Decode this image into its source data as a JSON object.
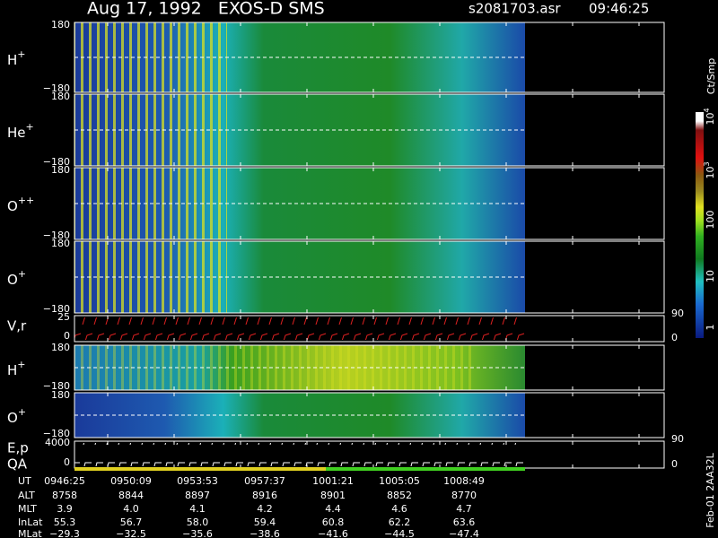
{
  "header": {
    "title": "Aug 17, 1992   EXOS-D SMS",
    "file": "s2081703.asr",
    "time": "09:46:25"
  },
  "panels": [
    {
      "label": "H",
      "charge": "+",
      "top": "180",
      "bottom": "−180"
    },
    {
      "label": "He",
      "charge": "+",
      "top": "180",
      "bottom": "−180"
    },
    {
      "label": "O",
      "charge": "++",
      "top": "180",
      "bottom": "−180"
    },
    {
      "label": "O",
      "charge": "+",
      "top": "180",
      "bottom": "−180"
    },
    {
      "label": "H",
      "charge": "+",
      "top": "180",
      "bottom": "−180"
    },
    {
      "label": "O",
      "charge": "+",
      "top": "180",
      "bottom": "−180"
    }
  ],
  "velocity_panel": {
    "label": "V,r",
    "left_top": "25",
    "left_bottom": "0",
    "right_top": "90",
    "right_bottom": "0"
  },
  "energy_panel": {
    "label": "E,p",
    "label2": "QA",
    "left_top": "4000",
    "left_bottom": "0",
    "right_top": "90",
    "right_bottom": "0"
  },
  "colorbar": {
    "unit": "Ct/Smp",
    "ticks": [
      {
        "base": "10",
        "exp": "4"
      },
      {
        "base": "10",
        "exp": "3"
      },
      {
        "text": "100"
      },
      {
        "text": "10"
      },
      {
        "text": "1"
      }
    ]
  },
  "table": {
    "rows": [
      {
        "label": "UT",
        "values": [
          "0946:25",
          "0950:09",
          "0953:53",
          "0957:37",
          "1001:21",
          "1005:05",
          "1008:49"
        ]
      },
      {
        "label": "ALT",
        "values": [
          "8758",
          "8844",
          "8897",
          "8916",
          "8901",
          "8852",
          "8770"
        ]
      },
      {
        "label": "MLT",
        "values": [
          "3.9",
          "4.0",
          "4.1",
          "4.2",
          "4.4",
          "4.6",
          "4.7"
        ]
      },
      {
        "label": "InLat",
        "values": [
          "55.3",
          "56.7",
          "58.0",
          "59.4",
          "60.8",
          "62.2",
          "63.6"
        ]
      },
      {
        "label": "MLat",
        "values": [
          "−29.3",
          "−32.5",
          "−35.6",
          "−38.6",
          "−41.6",
          "−44.5",
          "−47.4"
        ]
      }
    ]
  },
  "footer": "Feb-01 2AA32L"
}
